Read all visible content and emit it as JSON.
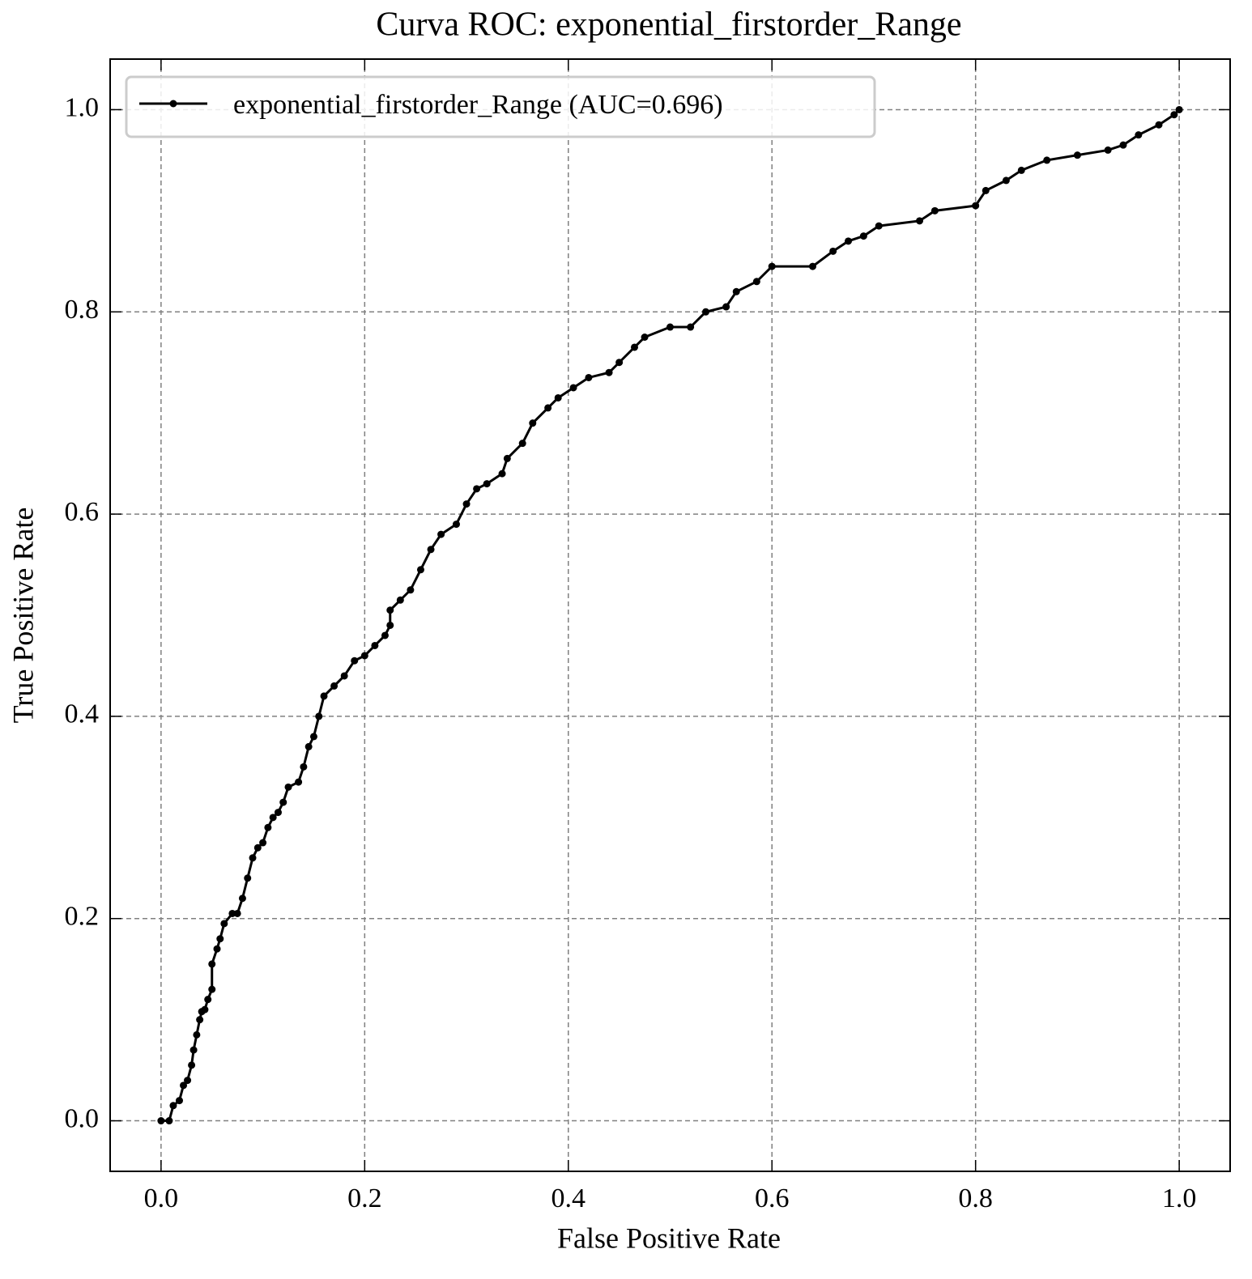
{
  "chart_data": {
    "type": "line",
    "title": "Curva ROC: exponential_firstorder_Range",
    "x_label": "False Positive Rate",
    "y_label": "True Positive Rate",
    "xlim": [
      -0.05,
      1.05
    ],
    "ylim": [
      -0.05,
      1.05
    ],
    "xticks": [
      {
        "value": 0,
        "label": "0.0"
      },
      0.2,
      0.4,
      0.6,
      0.8,
      {
        "value": 1,
        "label": "1.0"
      }
    ],
    "yticks": [
      {
        "value": 0,
        "label": "0.0"
      },
      0.2,
      0.4,
      0.6,
      0.8,
      {
        "value": 1,
        "label": "1.0"
      }
    ],
    "grid": true,
    "legend": "upper left",
    "series": [
      {
        "name": "exponential_firstorder_Range (AUC=0.696)",
        "color": "#000000",
        "x": [
          0,
          0.008,
          0.012,
          0.018,
          0.022,
          0.026,
          0.03,
          0.032,
          0.035,
          0.038,
          0.04,
          0.043,
          0.046,
          0.05,
          0.05,
          0.055,
          0.058,
          0.062,
          0.07,
          0.075,
          0.08,
          0.085,
          0.09,
          0.095,
          0.1,
          0.105,
          0.11,
          0.115,
          0.12,
          0.125,
          0.135,
          0.14,
          0.145,
          0.15,
          0.155,
          0.16,
          0.17,
          0.18,
          0.19,
          0.2,
          0.21,
          0.22,
          0.225,
          0.225,
          0.235,
          0.245,
          0.255,
          0.265,
          0.275,
          0.29,
          0.3,
          0.31,
          0.32,
          0.335,
          0.34,
          0.355,
          0.365,
          0.38,
          0.39,
          0.405,
          0.42,
          0.44,
          0.45,
          0.465,
          0.475,
          0.5,
          0.52,
          0.535,
          0.555,
          0.565,
          0.585,
          0.6,
          0.64,
          0.66,
          0.675,
          0.69,
          0.705,
          0.745,
          0.76,
          0.8,
          0.81,
          0.83,
          0.845,
          0.87,
          0.9,
          0.93,
          0.945,
          0.96,
          0.98,
          0.995,
          1
        ],
        "values": [
          0,
          0,
          0.015,
          0.02,
          0.035,
          0.04,
          0.055,
          0.07,
          0.085,
          0.1,
          0.108,
          0.11,
          0.12,
          0.13,
          0.155,
          0.17,
          0.18,
          0.195,
          0.205,
          0.205,
          0.22,
          0.24,
          0.26,
          0.27,
          0.275,
          0.29,
          0.3,
          0.305,
          0.315,
          0.33,
          0.335,
          0.35,
          0.37,
          0.38,
          0.4,
          0.42,
          0.43,
          0.44,
          0.455,
          0.46,
          0.47,
          0.48,
          0.49,
          0.505,
          0.515,
          0.525,
          0.545,
          0.565,
          0.58,
          0.59,
          0.61,
          0.625,
          0.63,
          0.64,
          0.655,
          0.67,
          0.69,
          0.705,
          0.715,
          0.725,
          0.735,
          0.74,
          0.75,
          0.765,
          0.775,
          0.785,
          0.785,
          0.8,
          0.805,
          0.82,
          0.83,
          0.845,
          0.845,
          0.86,
          0.87,
          0.875,
          0.885,
          0.89,
          0.9,
          0.905,
          0.92,
          0.93,
          0.94,
          0.95,
          0.955,
          0.96,
          0.965,
          0.975,
          0.985,
          0.995,
          1
        ]
      }
    ]
  }
}
